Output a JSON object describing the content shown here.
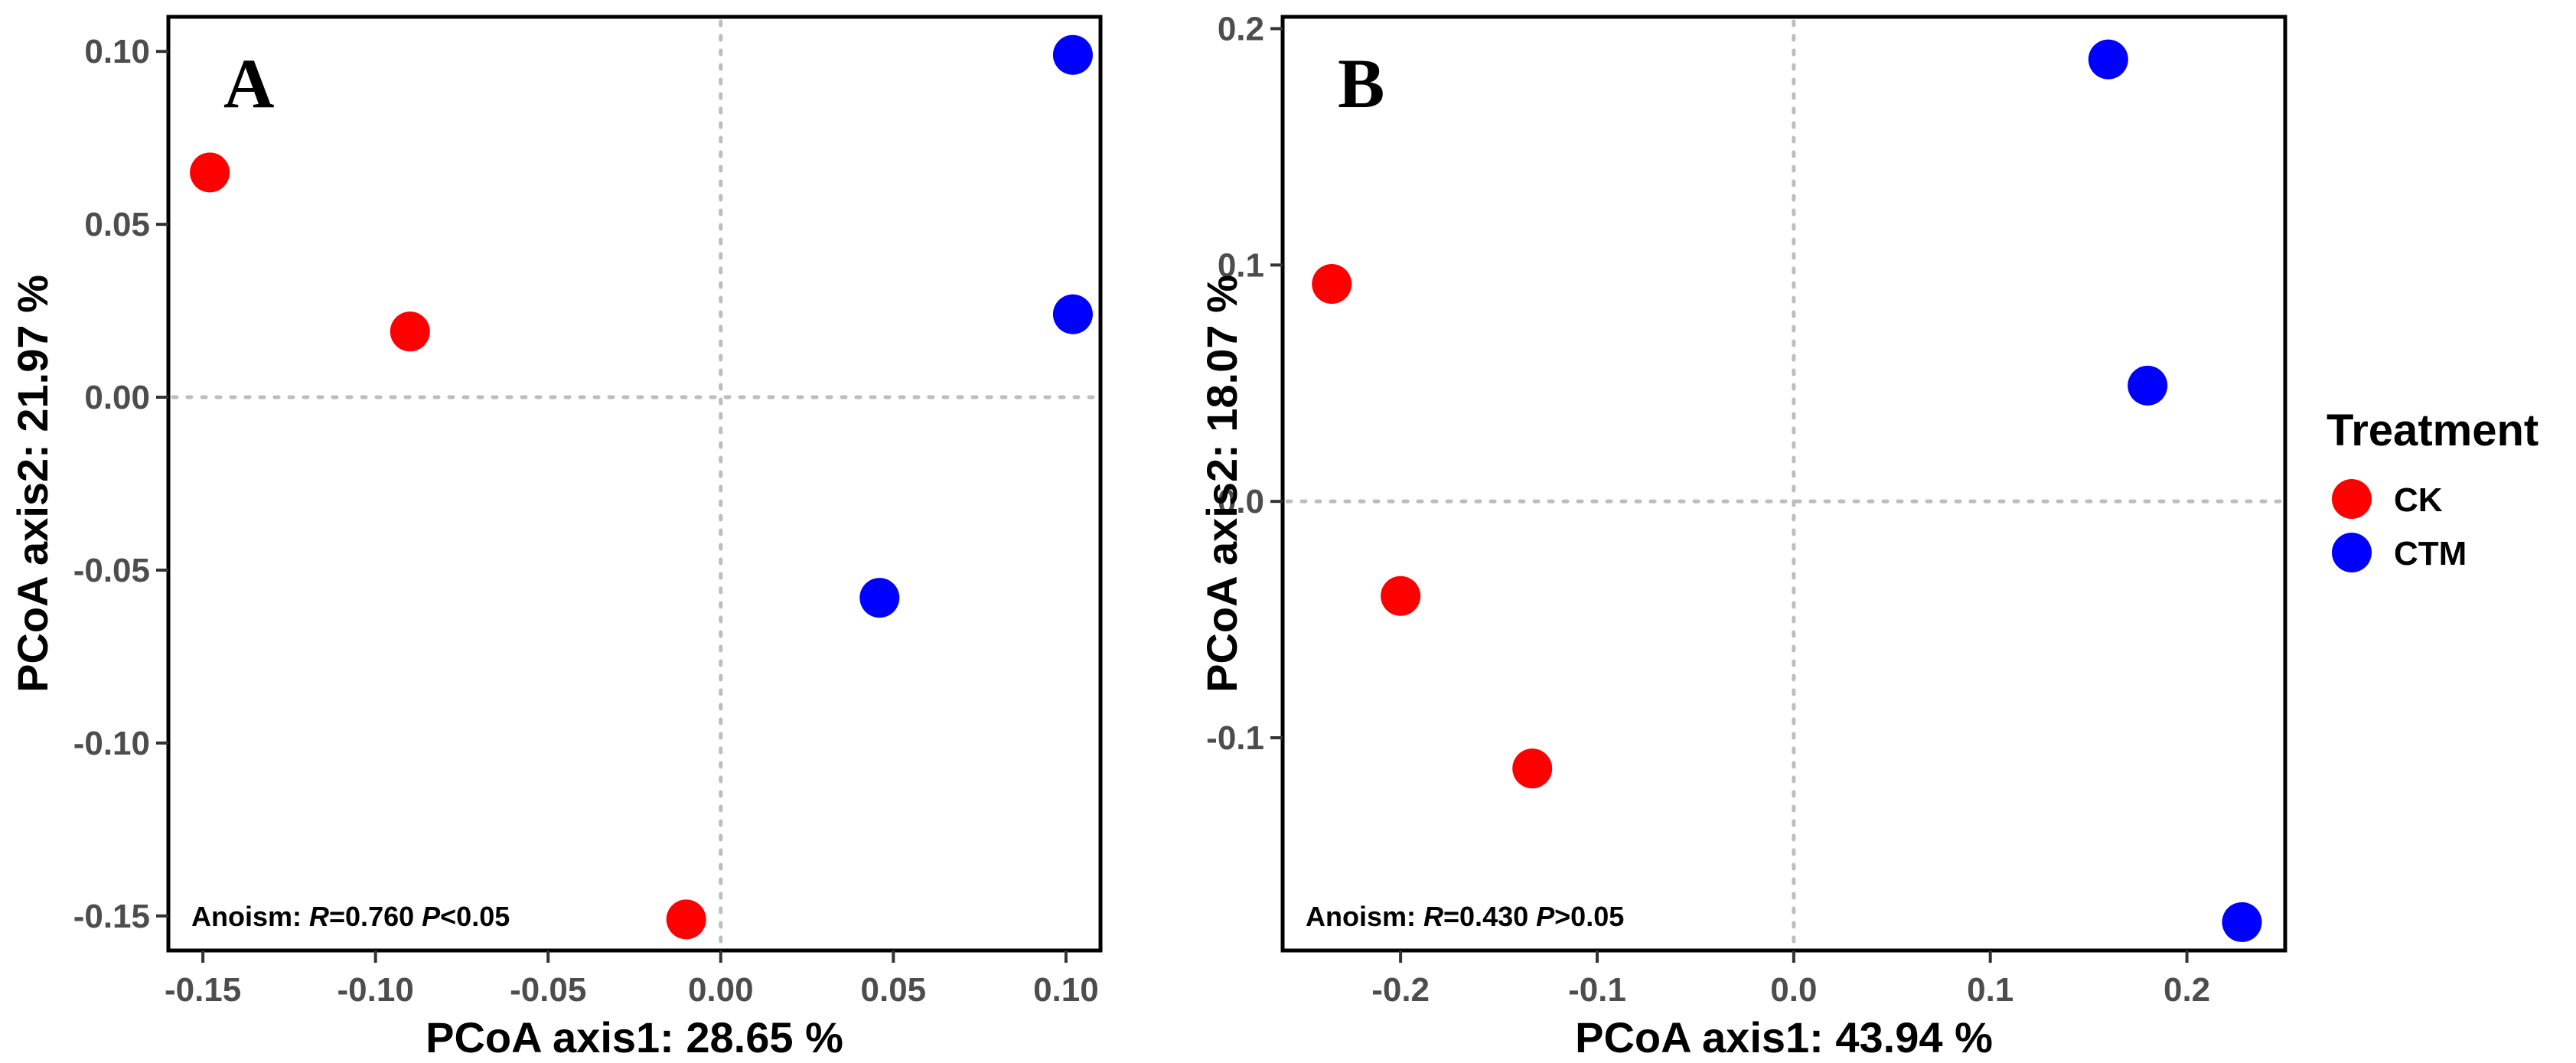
{
  "chart_data": [
    {
      "type": "scatter",
      "panel_label": "A",
      "xlabel": "PCoA axis1:  28.65 %",
      "ylabel": "PCoA axis2:  21.97 %",
      "xlim": [
        -0.16,
        0.11
      ],
      "ylim": [
        -0.16,
        0.11
      ],
      "xticks": [
        -0.15,
        -0.1,
        -0.05,
        0.0,
        0.05,
        0.1
      ],
      "xtick_labels": [
        "-0.15",
        "-0.10",
        "-0.05",
        "0.00",
        "0.05",
        "0.10"
      ],
      "yticks": [
        -0.15,
        -0.1,
        -0.05,
        0.0,
        0.05,
        0.1
      ],
      "ytick_labels": [
        "-0.15",
        "-0.10",
        "-0.05",
        "0.00",
        "0.05",
        "0.10"
      ],
      "grid": false,
      "zero_lines": true,
      "annotation": {
        "prefix": "Anoism: ",
        "r_symbol": "R",
        "r_value": "=0.760  ",
        "p_symbol": "P",
        "p_value": "<0.05"
      },
      "series": [
        {
          "name": "CK",
          "color": "#ff0000",
          "points": [
            [
              -0.148,
              0.065
            ],
            [
              -0.09,
              0.019
            ],
            [
              -0.01,
              -0.151
            ]
          ]
        },
        {
          "name": "CTM",
          "color": "#0000ff",
          "points": [
            [
              0.102,
              0.099
            ],
            [
              0.102,
              0.024
            ],
            [
              0.046,
              -0.058
            ]
          ]
        }
      ]
    },
    {
      "type": "scatter",
      "panel_label": "B",
      "xlabel": "PCoA axis1:  43.94 %",
      "ylabel": "PCoA axis2:  18.07 %",
      "xlim": [
        -0.26,
        0.25
      ],
      "ylim": [
        -0.19,
        0.205
      ],
      "xticks": [
        -0.2,
        -0.1,
        0.0,
        0.1,
        0.2
      ],
      "xtick_labels": [
        "-0.2",
        "-0.1",
        "0.0",
        "0.1",
        "0.2"
      ],
      "yticks": [
        -0.1,
        0.0,
        0.1,
        0.2
      ],
      "ytick_labels": [
        "-0.1",
        "0.0",
        "0.1",
        "0.2"
      ],
      "grid": false,
      "zero_lines": true,
      "annotation": {
        "prefix": "Anoism: ",
        "r_symbol": "R",
        "r_value": "=0.430  ",
        "p_symbol": "P",
        "p_value": ">0.05"
      },
      "series": [
        {
          "name": "CK",
          "color": "#ff0000",
          "points": [
            [
              -0.235,
              0.092
            ],
            [
              -0.2,
              -0.04
            ],
            [
              -0.133,
              -0.113
            ]
          ]
        },
        {
          "name": "CTM",
          "color": "#0000ff",
          "points": [
            [
              0.16,
              0.187
            ],
            [
              0.18,
              0.049
            ],
            [
              0.228,
              -0.178
            ]
          ]
        }
      ]
    }
  ],
  "legend": {
    "title": "Treatment",
    "placement": "right",
    "items": [
      {
        "label": "CK",
        "color": "#ff0000"
      },
      {
        "label": "CTM",
        "color": "#0000ff"
      }
    ]
  }
}
